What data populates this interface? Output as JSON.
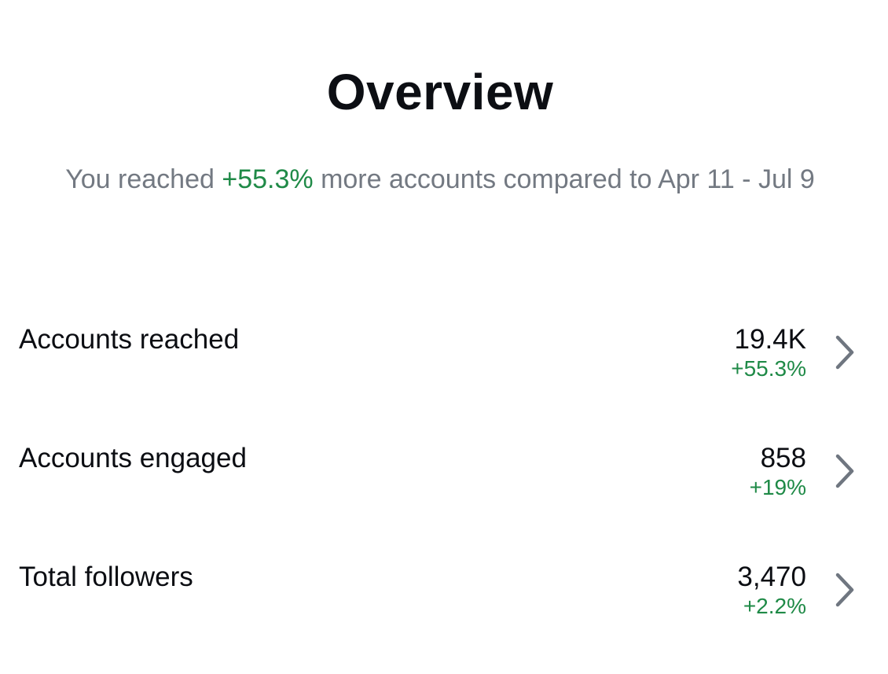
{
  "header": {
    "title": "Overview"
  },
  "summary": {
    "prefix": "You reached ",
    "highlight": "+55.3%",
    "suffix": " more accounts compared to Apr 11 - Jul 9"
  },
  "metrics": [
    {
      "label": "Accounts reached",
      "value": "19.4K",
      "change": "+55.3%"
    },
    {
      "label": "Accounts engaged",
      "value": "858",
      "change": "+19%"
    },
    {
      "label": "Total followers",
      "value": "3,470",
      "change": "+2.2%"
    }
  ],
  "colors": {
    "positive": "#1f8a47",
    "muted_text": "#737982",
    "primary_text": "#0b0d12",
    "chevron": "#6f7680"
  },
  "icons": {
    "row_arrow": "chevron-right-icon"
  }
}
